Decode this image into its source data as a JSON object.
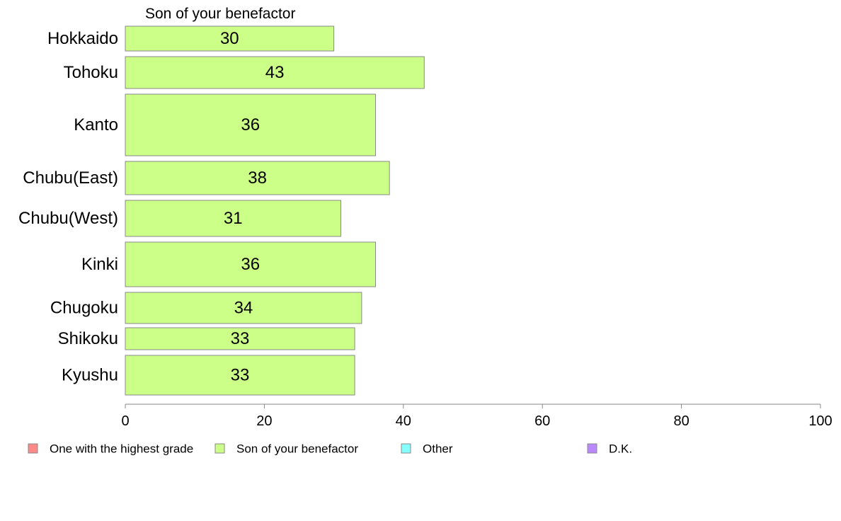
{
  "chart_data": {
    "type": "bar",
    "orientation": "horizontal",
    "series_title": "Son of your benefactor",
    "categories": [
      "Hokkaido",
      "Tohoku",
      "Kanto",
      "Chubu(East)",
      "Chubu(West)",
      "Kinki",
      "Chugoku",
      "Shikoku",
      "Kyushu"
    ],
    "series": [
      {
        "name": "Son of your benefactor",
        "values": [
          30,
          43,
          36,
          38,
          31,
          36,
          34,
          33,
          33
        ],
        "color": "#ccff88"
      }
    ],
    "value_labels": [
      "30",
      "43",
      "36",
      "38",
      "31",
      "36",
      "34",
      "33",
      "33"
    ],
    "xlim": [
      0,
      100
    ],
    "xticks": [
      0,
      20,
      40,
      60,
      80,
      100
    ],
    "grid": false,
    "legend_position": "bottom",
    "legend": [
      {
        "label": "One with the highest grade",
        "color": "#ff8888"
      },
      {
        "label": "Son of your benefactor",
        "color": "#ccff88"
      },
      {
        "label": "Other",
        "color": "#88ffff"
      },
      {
        "label": "D.K.",
        "color": "#bb88ff"
      }
    ]
  }
}
